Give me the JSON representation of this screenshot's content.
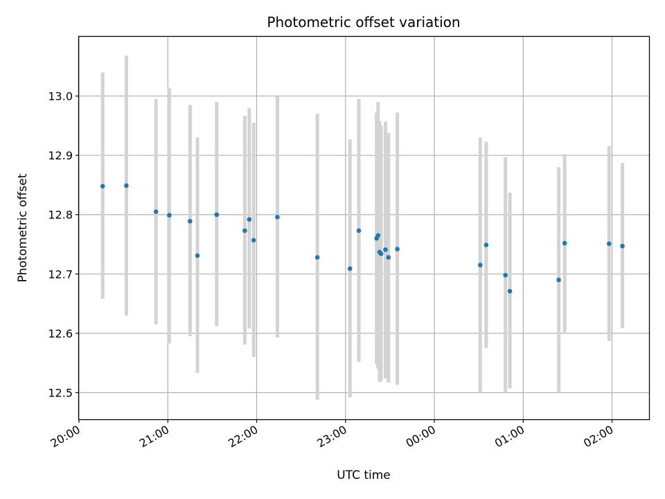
{
  "chart_data": {
    "type": "scatter",
    "title": "Photometric offset variation",
    "xlabel": "UTC time",
    "ylabel": "Photometric offset",
    "xlim": [
      "20:00",
      "02:25"
    ],
    "ylim": [
      12.455,
      13.1
    ],
    "grid": true,
    "x_ticks": [
      "20:00",
      "21:00",
      "22:00",
      "23:00",
      "00:00",
      "01:00",
      "02:00"
    ],
    "y_ticks": [
      "12.5",
      "12.6",
      "12.7",
      "12.8",
      "12.9",
      "13.0"
    ],
    "colors": {
      "points": "#1f77b4",
      "errorbars": "#d3d3d3",
      "grid": "#b0b0b0"
    },
    "points": [
      {
        "t": "20:16",
        "y": 12.848,
        "lo": 12.658,
        "hi": 13.04
      },
      {
        "t": "20:32",
        "y": 12.849,
        "lo": 12.63,
        "hi": 13.068
      },
      {
        "t": "20:52",
        "y": 12.805,
        "lo": 12.615,
        "hi": 12.995
      },
      {
        "t": "21:01",
        "y": 12.799,
        "lo": 12.583,
        "hi": 13.014
      },
      {
        "t": "21:15",
        "y": 12.789,
        "lo": 12.595,
        "hi": 12.985
      },
      {
        "t": "21:20",
        "y": 12.731,
        "lo": 12.533,
        "hi": 12.93
      },
      {
        "t": "21:33",
        "y": 12.8,
        "lo": 12.612,
        "hi": 12.99
      },
      {
        "t": "21:52",
        "y": 12.773,
        "lo": 12.581,
        "hi": 12.967
      },
      {
        "t": "21:55",
        "y": 12.792,
        "lo": 12.608,
        "hi": 12.98
      },
      {
        "t": "21:58",
        "y": 12.757,
        "lo": 12.56,
        "hi": 12.955
      },
      {
        "t": "22:14",
        "y": 12.796,
        "lo": 12.593,
        "hi": 13.0
      },
      {
        "t": "22:41",
        "y": 12.728,
        "lo": 12.488,
        "hi": 12.97
      },
      {
        "t": "23:03",
        "y": 12.709,
        "lo": 12.492,
        "hi": 12.927
      },
      {
        "t": "23:09",
        "y": 12.773,
        "lo": 12.552,
        "hi": 12.995
      },
      {
        "t": "23:21",
        "y": 12.76,
        "lo": 12.548,
        "hi": 12.972
      },
      {
        "t": "23:22",
        "y": 12.765,
        "lo": 12.54,
        "hi": 12.99
      },
      {
        "t": "23:23",
        "y": 12.737,
        "lo": 12.518,
        "hi": 12.958
      },
      {
        "t": "23:24",
        "y": 12.734,
        "lo": 12.52,
        "hi": 12.95
      },
      {
        "t": "23:27",
        "y": 12.741,
        "lo": 12.524,
        "hi": 12.957
      },
      {
        "t": "23:29",
        "y": 12.728,
        "lo": 12.517,
        "hi": 12.938
      },
      {
        "t": "23:35",
        "y": 12.742,
        "lo": 12.513,
        "hi": 12.972
      },
      {
        "t": "00:31",
        "y": 12.715,
        "lo": 12.5,
        "hi": 12.93
      },
      {
        "t": "00:35",
        "y": 12.749,
        "lo": 12.575,
        "hi": 12.923
      },
      {
        "t": "00:48",
        "y": 12.698,
        "lo": 12.5,
        "hi": 12.897
      },
      {
        "t": "00:51",
        "y": 12.671,
        "lo": 12.507,
        "hi": 12.837
      },
      {
        "t": "01:24",
        "y": 12.69,
        "lo": 12.5,
        "hi": 12.88
      },
      {
        "t": "01:28",
        "y": 12.752,
        "lo": 12.602,
        "hi": 12.902
      },
      {
        "t": "01:58",
        "y": 12.751,
        "lo": 12.587,
        "hi": 12.916
      },
      {
        "t": "02:07",
        "y": 12.747,
        "lo": 12.609,
        "hi": 12.887
      }
    ]
  }
}
